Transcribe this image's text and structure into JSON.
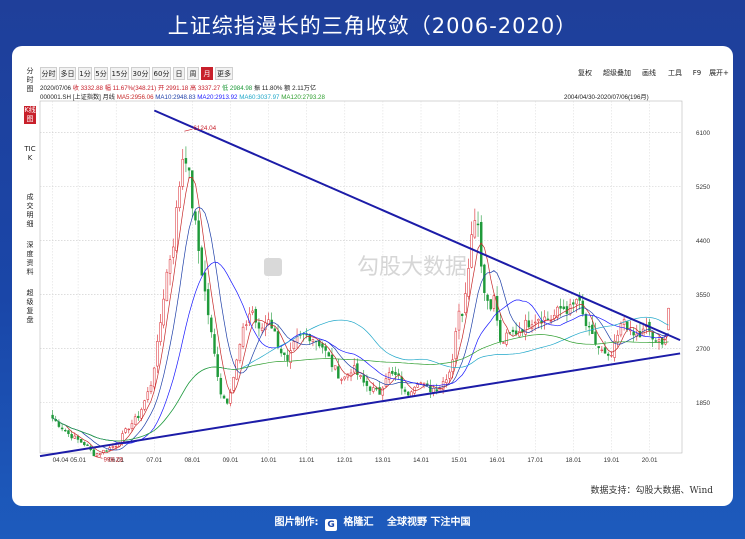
{
  "page_title": "上证综指漫长的三角收敛（2006-2020）",
  "toolbar": {
    "periods": [
      "分时",
      "多日",
      "1分",
      "5分",
      "15分",
      "30分",
      "60分",
      "日",
      "周",
      "月",
      "更多"
    ],
    "active_period": "月",
    "right_buttons": [
      "复权",
      "超级叠加",
      "画线",
      "工具",
      "F9",
      "展开+"
    ]
  },
  "sidebar": {
    "items": [
      "分时图",
      "K线图",
      "TICK",
      "成交明细",
      "深度资料",
      "超级复盘"
    ],
    "active": "K线图"
  },
  "quote_line": {
    "date": "2020/07/06",
    "close": "收 3332.88",
    "change": "幅 11.67%(348.21)",
    "open": "开 2991.18",
    "high": "高 3337.27",
    "low": "低 2984.98",
    "amplitude": "振 11.80%",
    "amount": "额 2.11万亿"
  },
  "ma_line": {
    "code": "000001.SH [上证指数]",
    "period": "月线",
    "ma5": "MA5:2956.06",
    "ma10": "MA10:2948.83",
    "ma20": "MA20:2913.92",
    "ma60": "MA60:3037.97",
    "ma120": "MA120:2793.28"
  },
  "range_label": "2004/04/30-2020/07/06(196月)",
  "watermark": "勾股大数据",
  "source_note": "数据支持：勾股大数据、Wind",
  "bottom_bar": {
    "prefix": "图片制作:",
    "logo_text": "G",
    "brand": "格隆汇",
    "slogan": "全球视野 下注中国"
  },
  "colors": {
    "up": "#d9242b",
    "down": "#1f9a3a",
    "trendline": "#1c1ca8",
    "ma5": "#c62828",
    "ma10": "#1e3fa8",
    "ma20": "#1a1aff",
    "ma60": "#1fa7c9",
    "ma120": "#2e9e2e"
  },
  "chart_data": {
    "type": "candlestick",
    "title": "上证综指漫长的三角收敛（2006-2020）",
    "y_ticks": [
      1850,
      2700,
      3550,
      4400,
      5250,
      6100
    ],
    "x_ticks": [
      "04.04",
      "05.01",
      "06.01",
      "07.01",
      "08.01",
      "09.01",
      "10.01",
      "11.01",
      "12.01",
      "13.01",
      "14.01",
      "15.01",
      "16.01",
      "17.01",
      "18.01",
      "19.01",
      "20.01"
    ],
    "ylim": [
      1050,
      6600
    ],
    "annotations": [
      {
        "text": "6124.04",
        "time": 2007.79,
        "value": 6124.04
      },
      {
        "text": "998.23",
        "time": 2005.43,
        "value": 998.23
      }
    ],
    "trendlines": [
      {
        "name": "上轨",
        "points": [
          [
            2007.0,
            6450
          ],
          [
            2020.8,
            2830
          ]
        ]
      },
      {
        "name": "下轨",
        "points": [
          [
            2004.0,
            1000
          ],
          [
            2020.8,
            2620
          ]
        ]
      }
    ],
    "close_series": [
      [
        2004.33,
        1600
      ],
      [
        2004.75,
        1350
      ],
      [
        2005.2,
        1180
      ],
      [
        2005.43,
        1020
      ],
      [
        2005.8,
        1120
      ],
      [
        2006.0,
        1180
      ],
      [
        2006.3,
        1440
      ],
      [
        2006.6,
        1650
      ],
      [
        2006.9,
        2100
      ],
      [
        2007.1,
        2800
      ],
      [
        2007.3,
        3800
      ],
      [
        2007.5,
        4400
      ],
      [
        2007.7,
        5500
      ],
      [
        2007.79,
        5950
      ],
      [
        2007.95,
        5200
      ],
      [
        2008.15,
        4300
      ],
      [
        2008.35,
        3500
      ],
      [
        2008.55,
        2700
      ],
      [
        2008.75,
        2000
      ],
      [
        2008.9,
        1850
      ],
      [
        2009.1,
        2300
      ],
      [
        2009.3,
        2900
      ],
      [
        2009.55,
        3350
      ],
      [
        2009.75,
        2950
      ],
      [
        2010.0,
        3200
      ],
      [
        2010.3,
        2700
      ],
      [
        2010.5,
        2450
      ],
      [
        2010.7,
        2800
      ],
      [
        2010.9,
        2900
      ],
      [
        2011.1,
        2900
      ],
      [
        2011.4,
        2750
      ],
      [
        2011.7,
        2400
      ],
      [
        2011.95,
        2200
      ],
      [
        2012.2,
        2400
      ],
      [
        2012.5,
        2150
      ],
      [
        2012.9,
        1980
      ],
      [
        2013.1,
        2300
      ],
      [
        2013.4,
        2250
      ],
      [
        2013.6,
        1950
      ],
      [
        2013.9,
        2200
      ],
      [
        2014.2,
        2050
      ],
      [
        2014.5,
        2100
      ],
      [
        2014.8,
        2400
      ],
      [
        2014.95,
        3200
      ],
      [
        2015.1,
        3300
      ],
      [
        2015.25,
        4100
      ],
      [
        2015.45,
        5000
      ],
      [
        2015.55,
        4300
      ],
      [
        2015.65,
        3600
      ],
      [
        2015.8,
        3400
      ],
      [
        2015.95,
        3500
      ],
      [
        2016.05,
        2750
      ],
      [
        2016.3,
        2900
      ],
      [
        2016.6,
        3000
      ],
      [
        2016.9,
        3150
      ],
      [
        2017.1,
        3200
      ],
      [
        2017.4,
        3150
      ],
      [
        2017.7,
        3350
      ],
      [
        2017.95,
        3300
      ],
      [
        2018.1,
        3500
      ],
      [
        2018.3,
        3100
      ],
      [
        2018.55,
        2800
      ],
      [
        2018.8,
        2600
      ],
      [
        2018.95,
        2500
      ],
      [
        2019.2,
        2950
      ],
      [
        2019.35,
        3200
      ],
      [
        2019.5,
        2900
      ],
      [
        2019.75,
        2900
      ],
      [
        2019.95,
        3050
      ],
      [
        2020.15,
        2750
      ],
      [
        2020.35,
        2850
      ],
      [
        2020.45,
        2950
      ],
      [
        2020.51,
        3332.88
      ]
    ],
    "latest": {
      "open": 2991.18,
      "high": 3337.27,
      "low": 2984.98,
      "close": 3332.88
    }
  }
}
